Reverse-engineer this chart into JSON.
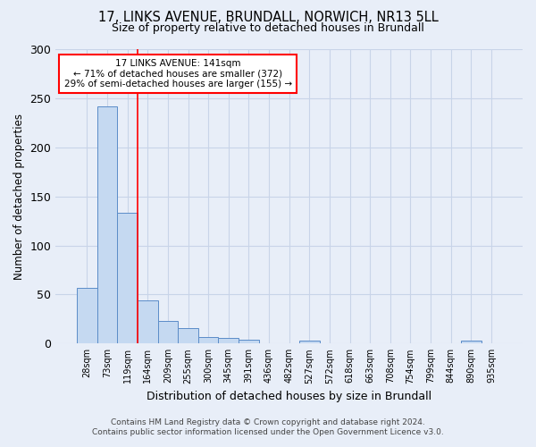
{
  "title_line1": "17, LINKS AVENUE, BRUNDALL, NORWICH, NR13 5LL",
  "title_line2": "Size of property relative to detached houses in Brundall",
  "xlabel": "Distribution of detached houses by size in Brundall",
  "ylabel": "Number of detached properties",
  "footer_line1": "Contains HM Land Registry data © Crown copyright and database right 2024.",
  "footer_line2": "Contains public sector information licensed under the Open Government Licence v3.0.",
  "categories": [
    "28sqm",
    "73sqm",
    "119sqm",
    "164sqm",
    "209sqm",
    "255sqm",
    "300sqm",
    "345sqm",
    "391sqm",
    "436sqm",
    "482sqm",
    "527sqm",
    "572sqm",
    "618sqm",
    "663sqm",
    "708sqm",
    "754sqm",
    "799sqm",
    "844sqm",
    "890sqm",
    "935sqm"
  ],
  "values": [
    57,
    242,
    133,
    44,
    23,
    16,
    7,
    6,
    4,
    0,
    0,
    3,
    0,
    0,
    0,
    0,
    0,
    0,
    0,
    3,
    0
  ],
  "bar_color": "#c5d9f1",
  "bar_edge_color": "#5b8cc8",
  "grid_color": "#c8d4e8",
  "background_color": "#e8eef8",
  "vline_x": 2.5,
  "vline_color": "red",
  "annotation_line1": "17 LINKS AVENUE: 141sqm",
  "annotation_line2": "← 71% of detached houses are smaller (372)",
  "annotation_line3": "29% of semi-detached houses are larger (155) →",
  "annotation_box_color": "white",
  "annotation_box_edge_color": "red",
  "ylim": [
    0,
    300
  ],
  "yticks": [
    0,
    50,
    100,
    150,
    200,
    250,
    300
  ]
}
